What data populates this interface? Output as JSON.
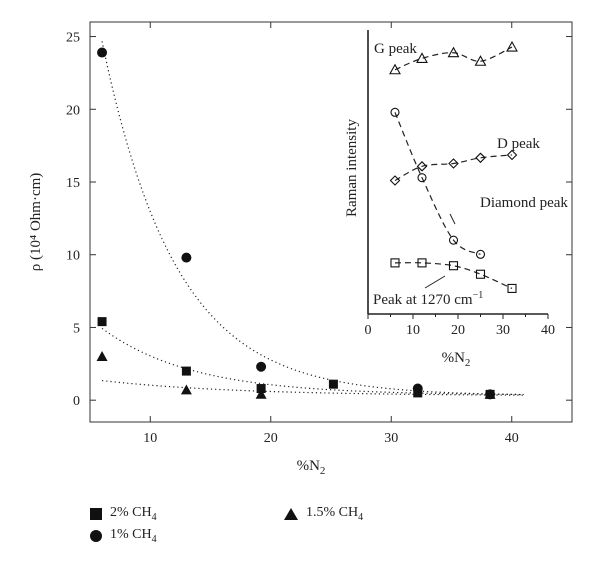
{
  "chart_data": [
    {
      "type": "scatter",
      "xlabel": "%N",
      "xlabel_sub": "2",
      "ylabel": "ρ (10⁴ Ohm·cm)",
      "xlim": [
        5,
        45
      ],
      "ylim": [
        -1.5,
        26
      ],
      "xticks": [
        10,
        20,
        30,
        40
      ],
      "yticks": [
        0,
        5,
        10,
        15,
        20,
        25
      ],
      "trendline": "dotted",
      "series": [
        {
          "name": "2% CH4",
          "label": "2% CH",
          "label_sub": "4",
          "marker": "square",
          "x": [
            6,
            13,
            19.2,
            25.2,
            32.2,
            38.2
          ],
          "y": [
            5.4,
            2.0,
            0.8,
            1.1,
            0.5,
            0.4
          ]
        },
        {
          "name": "1% CH4",
          "label": "1% CH",
          "label_sub": "4",
          "marker": "circle",
          "x": [
            6,
            13,
            19.2,
            32.2,
            38.2
          ],
          "y": [
            23.9,
            9.8,
            2.3,
            0.8,
            0.4
          ]
        },
        {
          "name": "1.5% CH4",
          "label": "1.5% CH",
          "label_sub": "4",
          "marker": "triangle",
          "x": [
            6,
            13,
            19.2,
            38.2
          ],
          "y": [
            3.0,
            0.7,
            0.4,
            0.4
          ]
        }
      ]
    },
    {
      "type": "scatter",
      "inset": true,
      "xlabel": "%N",
      "xlabel_sub": "2",
      "ylabel": "Raman intensity",
      "xlim": [
        0,
        40
      ],
      "xticks": [
        0,
        10,
        20,
        30,
        40
      ],
      "ylim": [
        0,
        100
      ],
      "trendline": "dashed",
      "series": [
        {
          "name": "G peak",
          "marker": "triangle-open",
          "x": [
            6,
            12,
            19,
            25,
            32
          ],
          "y": [
            86,
            90,
            92,
            89,
            94
          ]
        },
        {
          "name": "D peak",
          "marker": "diamond-open",
          "x": [
            6,
            12,
            19,
            25,
            32
          ],
          "y": [
            47,
            52,
            53,
            55,
            56
          ]
        },
        {
          "name": "Diamond peak",
          "marker": "circle-open",
          "x": [
            6,
            12,
            19,
            25
          ],
          "y": [
            71,
            48,
            26,
            21
          ]
        },
        {
          "name": "Peak at 1270 cm−1",
          "marker": "square-open",
          "x": [
            6,
            12,
            19,
            25,
            32
          ],
          "y": [
            18,
            18,
            17,
            14,
            9
          ]
        }
      ],
      "annotations": [
        "G peak",
        "D peak",
        "Diamond peak",
        "Peak at 1270 cm",
        "−1"
      ]
    }
  ],
  "legend": {
    "items": [
      {
        "marker": "square",
        "text": "2% CH",
        "sub": "4"
      },
      {
        "marker": "circle",
        "text": "1% CH",
        "sub": "4"
      },
      {
        "marker": "triangle",
        "text": "1.5% CH",
        "sub": "4"
      }
    ]
  }
}
